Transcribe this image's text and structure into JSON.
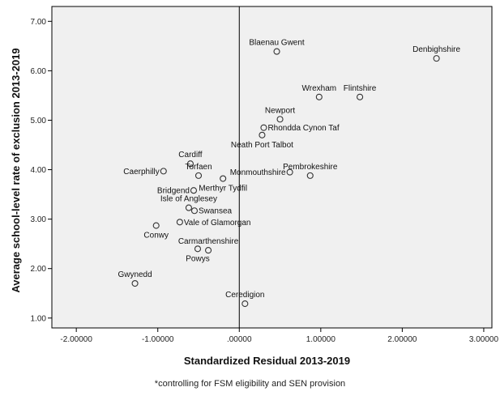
{
  "chart_data": {
    "type": "scatter",
    "xlabel": "Standardized Residual 2013-2019",
    "ylabel": "Average school-level rate of exclusion 2013-2019",
    "xlim": [
      -2.3,
      3.1
    ],
    "ylim": [
      0.8,
      7.3
    ],
    "x_ticks": [
      -2,
      -1,
      0,
      1,
      2,
      3
    ],
    "x_tick_labels": [
      "-2.00000",
      "-1.00000",
      ".00000",
      "1.00000",
      "2.00000",
      "3.00000"
    ],
    "y_ticks": [
      1,
      2,
      3,
      4,
      5,
      6,
      7
    ],
    "y_tick_labels": [
      "1.00",
      "2.00",
      "3.00",
      "4.00",
      "5.00",
      "6.00",
      "7.00"
    ],
    "reference_line_x": 0,
    "grid": false,
    "background": "#f0f0f0",
    "point_color": "#333333",
    "points": [
      {
        "label": "Blaenau Gwent",
        "x": 0.46,
        "y": 6.39,
        "label_pos": "above"
      },
      {
        "label": "Denbighshire",
        "x": 2.42,
        "y": 6.25,
        "label_pos": "above"
      },
      {
        "label": "Wrexham",
        "x": 0.98,
        "y": 5.47,
        "label_pos": "above"
      },
      {
        "label": "Flintshire",
        "x": 1.48,
        "y": 5.47,
        "label_pos": "above"
      },
      {
        "label": "Newport",
        "x": 0.5,
        "y": 5.02,
        "label_pos": "above"
      },
      {
        "label": "Rhondda Cynon Taf",
        "x": 0.3,
        "y": 4.85,
        "label_pos": "right"
      },
      {
        "label": "Neath Port Talbot",
        "x": 0.28,
        "y": 4.7,
        "label_pos": "below"
      },
      {
        "label": "Cardiff",
        "x": -0.6,
        "y": 4.12,
        "label_pos": "above"
      },
      {
        "label": "Monmouthshire",
        "x": 0.62,
        "y": 3.95,
        "label_pos": "left"
      },
      {
        "label": "Caerphilly",
        "x": -0.93,
        "y": 3.97,
        "label_pos": "left"
      },
      {
        "label": "Torfaen",
        "x": -0.5,
        "y": 3.88,
        "label_pos": "above"
      },
      {
        "label": "Pembrokeshire",
        "x": 0.87,
        "y": 3.88,
        "label_pos": "above"
      },
      {
        "label": "Merthyr Tydfil",
        "x": -0.2,
        "y": 3.82,
        "label_pos": "below"
      },
      {
        "label": "Bridgend",
        "x": -0.56,
        "y": 3.58,
        "label_pos": "left"
      },
      {
        "label": "Isle of Anglesey",
        "x": -0.62,
        "y": 3.23,
        "label_pos": "above"
      },
      {
        "label": "Swansea",
        "x": -0.55,
        "y": 3.17,
        "label_pos": "right"
      },
      {
        "label": "Vale of Glamorgan",
        "x": -0.73,
        "y": 2.94,
        "label_pos": "right"
      },
      {
        "label": "Conwy",
        "x": -1.02,
        "y": 2.87,
        "label_pos": "below"
      },
      {
        "label": "Carmarthenshire",
        "x": -0.38,
        "y": 2.37,
        "label_pos": "above"
      },
      {
        "label": "Powys",
        "x": -0.51,
        "y": 2.4,
        "label_pos": "below"
      },
      {
        "label": "Gwynedd",
        "x": -1.28,
        "y": 1.7,
        "label_pos": "above"
      },
      {
        "label": "Ceredigion",
        "x": 0.07,
        "y": 1.29,
        "label_pos": "above"
      }
    ],
    "footnote": "*controlling for FSM eligibility and SEN provision"
  }
}
